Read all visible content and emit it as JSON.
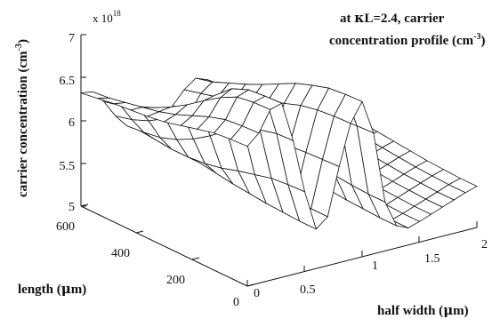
{
  "chart_data": {
    "type": "surface",
    "annotation": {
      "line1_prefix": "at ",
      "kappa": "κ",
      "line1_suffix": "L=2.4, carrier",
      "line2_prefix": "concentration profile (cm",
      "line2_sup": "-3",
      "line2_suffix": ")"
    },
    "z_axis": {
      "label": "carrier concentration (cm",
      "label_sup": "-3",
      "label_suffix": ")",
      "ticks": [
        "5",
        "5.5",
        "6",
        "6.5",
        "7"
      ],
      "tick_values": [
        5,
        5.5,
        6,
        6.5,
        7
      ],
      "multiplier_base": "x 10",
      "multiplier_exp": "18",
      "range": [
        5,
        7
      ]
    },
    "y_axis": {
      "label_prefix": "length (",
      "label_mu": "μ",
      "label_suffix": "m)",
      "ticks": [
        "0",
        "200",
        "400",
        "600"
      ],
      "tick_values": [
        0,
        200,
        400,
        600
      ],
      "range": [
        0,
        600
      ]
    },
    "x_axis": {
      "label_prefix": "half width (",
      "label_mu": "μ",
      "label_suffix": "m)",
      "ticks": [
        "0",
        "0.5",
        "1",
        "1.5",
        "2"
      ],
      "tick_values": [
        0,
        0.5,
        1,
        1.5,
        2
      ],
      "range": [
        0,
        2
      ]
    },
    "surface": {
      "half_width": [
        0,
        0.1,
        0.2,
        0.3,
        0.4,
        0.5,
        0.6,
        0.7,
        0.8,
        0.9,
        1.0,
        1.1,
        1.2,
        1.3,
        1.4,
        1.5,
        1.6,
        1.7,
        1.8,
        1.9,
        2.0
      ],
      "length": [
        600,
        540,
        480,
        420,
        360,
        300,
        240,
        180,
        120,
        60,
        0
      ],
      "concentration_x1e18": [
        [
          6.32,
          6.3,
          6.15,
          5.95,
          5.8,
          5.72,
          5.7,
          5.75,
          5.9,
          6.05,
          6.15,
          6.1,
          5.8,
          5.45,
          5.35,
          5.4,
          5.45,
          5.5,
          5.55,
          5.6,
          5.65
        ],
        [
          6.35,
          6.32,
          6.2,
          6.0,
          5.82,
          5.7,
          5.66,
          5.72,
          5.9,
          6.1,
          6.2,
          6.12,
          5.75,
          5.4,
          5.33,
          5.38,
          5.43,
          5.48,
          5.53,
          5.58,
          5.62
        ],
        [
          6.38,
          6.36,
          6.28,
          6.08,
          5.85,
          5.68,
          5.62,
          5.7,
          5.92,
          6.15,
          6.28,
          6.15,
          5.72,
          5.38,
          5.32,
          5.36,
          5.41,
          5.46,
          5.51,
          5.56,
          5.6
        ],
        [
          6.4,
          6.4,
          6.36,
          6.2,
          5.92,
          5.68,
          5.58,
          5.68,
          5.95,
          6.22,
          6.36,
          6.18,
          5.7,
          5.36,
          5.3,
          5.34,
          5.39,
          5.44,
          5.49,
          5.54,
          5.58
        ],
        [
          6.42,
          6.44,
          6.46,
          6.36,
          6.02,
          5.7,
          5.55,
          5.66,
          5.98,
          6.3,
          6.45,
          6.2,
          5.68,
          5.34,
          5.28,
          5.32,
          5.37,
          5.42,
          5.47,
          5.52,
          5.56
        ],
        [
          6.45,
          6.5,
          6.58,
          6.55,
          6.15,
          5.74,
          5.52,
          5.64,
          6.02,
          6.38,
          6.55,
          6.25,
          5.65,
          5.32,
          5.26,
          5.3,
          5.35,
          5.4,
          5.45,
          5.5,
          5.54
        ],
        [
          6.5,
          6.58,
          6.72,
          6.75,
          6.3,
          5.8,
          5.5,
          5.62,
          6.05,
          6.45,
          6.65,
          6.3,
          5.62,
          5.3,
          5.24,
          5.28,
          5.33,
          5.38,
          5.43,
          5.48,
          5.52
        ],
        [
          6.55,
          6.66,
          6.85,
          6.92,
          6.42,
          5.85,
          5.48,
          5.6,
          6.08,
          6.52,
          6.72,
          6.35,
          5.6,
          5.28,
          5.22,
          5.26,
          5.31,
          5.36,
          5.41,
          5.46,
          5.5
        ],
        [
          6.6,
          6.72,
          6.95,
          7.0,
          6.5,
          5.9,
          5.47,
          5.58,
          6.1,
          6.56,
          6.78,
          6.38,
          5.58,
          5.27,
          5.21,
          5.25,
          5.3,
          5.35,
          5.4,
          5.45,
          5.49
        ],
        [
          6.62,
          6.74,
          6.98,
          7.02,
          6.55,
          5.92,
          5.46,
          5.57,
          6.11,
          6.58,
          6.8,
          6.4,
          5.57,
          5.26,
          5.2,
          5.24,
          5.29,
          5.34,
          5.39,
          5.44,
          5.48
        ],
        [
          6.63,
          6.75,
          6.99,
          7.03,
          6.56,
          5.93,
          5.46,
          5.57,
          6.12,
          6.59,
          6.81,
          6.41,
          5.57,
          5.26,
          5.2,
          5.24,
          5.29,
          5.34,
          5.39,
          5.44,
          5.48
        ]
      ]
    }
  }
}
